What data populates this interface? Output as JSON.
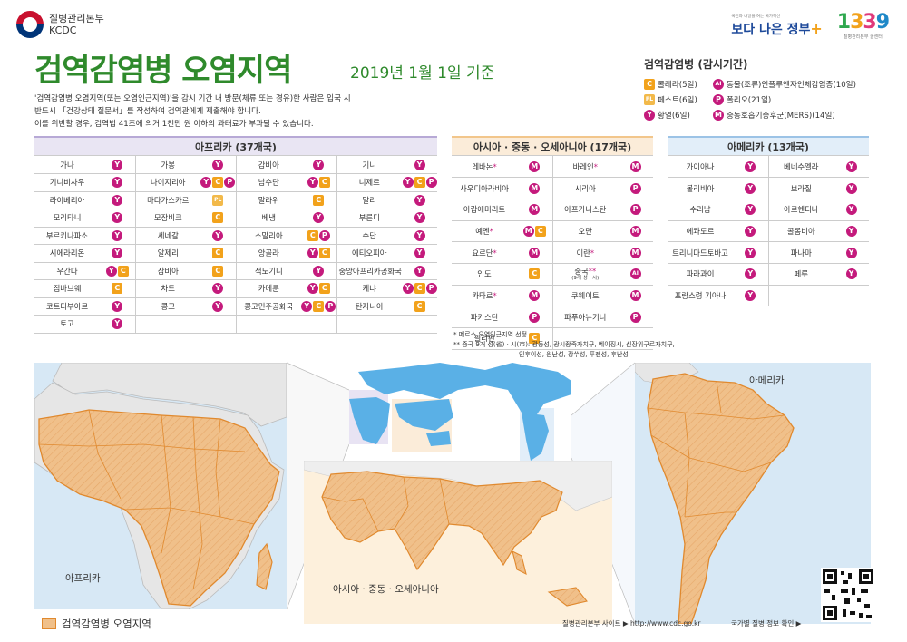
{
  "header": {
    "org_ko": "질병관리본부",
    "org_en": "KCDC",
    "title": "검역감염병 오염지역",
    "date": "2019년 1월 1일 기준",
    "desc": [
      "'검역감염병 오염지역(또는 오염인근지역)'을 감시 기간 내  방문(체류 또는 경유)한 사람은 입국 시",
      "반드시 「건강상태 질문서」를 작성하여 검역관에게 제출해야 합니다.",
      "이를 위반할 경우, 검역법 41조에 의거 1천만 원 이하의 과태료가 부과될 수 있습니다."
    ],
    "gov_logo_sub": "국민과 내일을 여는 국가혁신",
    "gov_logo_text": "보다 나은 정부",
    "hotline": "1339",
    "hotline_sub": "질병관리본부 콜센터"
  },
  "legend": {
    "title": "검역감염병 (감시기간)",
    "items": [
      {
        "code": "C",
        "glyph": "C",
        "label": "콜레라(5일)"
      },
      {
        "code": "AI",
        "glyph": "AI",
        "label": "동물(조류)인플루엔자인체감염증(10일)"
      },
      {
        "code": "PL",
        "glyph": "PL",
        "label": "페스트(6일)"
      },
      {
        "code": "P",
        "glyph": "P",
        "label": "폴리오(21일)"
      },
      {
        "code": "Y",
        "glyph": "Y",
        "label": "황열(6일)"
      },
      {
        "code": "M",
        "glyph": "M",
        "label": "중동호흡기증후군(MERS)(14일)"
      }
    ]
  },
  "africa": {
    "title": "아프리카 (37개국)",
    "rows": [
      [
        {
          "n": "가나",
          "d": [
            "Y"
          ]
        },
        {
          "n": "가봉",
          "d": [
            "Y"
          ]
        },
        {
          "n": "감비아",
          "d": [
            "Y"
          ]
        },
        {
          "n": "기니",
          "d": [
            "Y"
          ]
        }
      ],
      [
        {
          "n": "기니비사우",
          "d": [
            "Y"
          ]
        },
        {
          "n": "나이지리아",
          "d": [
            "Y",
            "C",
            "P"
          ]
        },
        {
          "n": "남수단",
          "d": [
            "Y",
            "C"
          ]
        },
        {
          "n": "니제르",
          "d": [
            "Y",
            "C",
            "P"
          ]
        }
      ],
      [
        {
          "n": "라이베리아",
          "d": [
            "Y"
          ]
        },
        {
          "n": "마다가스카르",
          "d": [
            "PL"
          ]
        },
        {
          "n": "말라위",
          "d": [
            "C"
          ]
        },
        {
          "n": "말리",
          "d": [
            "Y"
          ]
        }
      ],
      [
        {
          "n": "모리타니",
          "d": [
            "Y"
          ]
        },
        {
          "n": "모잠비크",
          "d": [
            "C"
          ]
        },
        {
          "n": "베냉",
          "d": [
            "Y"
          ]
        },
        {
          "n": "부룬디",
          "d": [
            "Y"
          ]
        }
      ],
      [
        {
          "n": "부르키나파소",
          "d": [
            "Y"
          ]
        },
        {
          "n": "세네갈",
          "d": [
            "Y"
          ]
        },
        {
          "n": "소말리아",
          "d": [
            "C",
            "P"
          ]
        },
        {
          "n": "수단",
          "d": [
            "Y"
          ]
        }
      ],
      [
        {
          "n": "시에라리온",
          "d": [
            "Y"
          ]
        },
        {
          "n": "알제리",
          "d": [
            "C"
          ]
        },
        {
          "n": "앙골라",
          "d": [
            "Y",
            "C"
          ]
        },
        {
          "n": "에티오피아",
          "d": [
            "Y"
          ]
        }
      ],
      [
        {
          "n": "우간다",
          "d": [
            "Y",
            "C"
          ]
        },
        {
          "n": "잠비아",
          "d": [
            "C"
          ]
        },
        {
          "n": "적도기니",
          "d": [
            "Y"
          ]
        },
        {
          "n": "중앙아프리카공화국",
          "d": [
            "Y"
          ]
        }
      ],
      [
        {
          "n": "짐바브웨",
          "d": [
            "C"
          ]
        },
        {
          "n": "차드",
          "d": [
            "Y"
          ]
        },
        {
          "n": "카메룬",
          "d": [
            "Y",
            "C"
          ]
        },
        {
          "n": "케냐",
          "d": [
            "Y",
            "C",
            "P"
          ]
        }
      ],
      [
        {
          "n": "코트디부아르",
          "d": [
            "Y"
          ]
        },
        {
          "n": "콩고",
          "d": [
            "Y"
          ]
        },
        {
          "n": "콩고민주공화국",
          "d": [
            "Y",
            "C",
            "P"
          ]
        },
        {
          "n": "탄자니아",
          "d": [
            "C"
          ]
        }
      ],
      [
        {
          "n": "토고",
          "d": [
            "Y"
          ]
        },
        {
          "n": "",
          "d": []
        },
        {
          "n": "",
          "d": []
        },
        {
          "n": "",
          "d": []
        }
      ]
    ]
  },
  "asia": {
    "title": "아시아 · 중동 · 오세아니아 (17개국)",
    "rows": [
      [
        {
          "n": "레바논",
          "mark": "*",
          "d": [
            "M"
          ]
        },
        {
          "n": "바레인",
          "mark": "*",
          "d": [
            "M"
          ]
        }
      ],
      [
        {
          "n": "사우디아라비아",
          "d": [
            "M"
          ]
        },
        {
          "n": "시리아",
          "d": [
            "P"
          ]
        }
      ],
      [
        {
          "n": "아랍에미리트",
          "d": [
            "M"
          ]
        },
        {
          "n": "아프가니스탄",
          "d": [
            "P"
          ]
        }
      ],
      [
        {
          "n": "예멘",
          "mark": "*",
          "d": [
            "M",
            "C"
          ]
        },
        {
          "n": "오만",
          "d": [
            "M"
          ]
        }
      ],
      [
        {
          "n": "요르단",
          "mark": "*",
          "d": [
            "M"
          ]
        },
        {
          "n": "이란",
          "mark": "*",
          "d": [
            "M"
          ]
        }
      ],
      [
        {
          "n": "인도",
          "d": [
            "C"
          ]
        },
        {
          "n": "중국",
          "mark": "**",
          "sub": "(9개 성 · 시)",
          "d": [
            "AI"
          ]
        }
      ],
      [
        {
          "n": "카타르",
          "mark": "*",
          "d": [
            "M"
          ]
        },
        {
          "n": "쿠웨이트",
          "d": [
            "M"
          ]
        }
      ],
      [
        {
          "n": "파키스탄",
          "d": [
            "P"
          ]
        },
        {
          "n": "파푸아뉴기니",
          "d": [
            "P"
          ]
        }
      ],
      [
        {
          "n": "필리핀",
          "d": [
            "C"
          ]
        },
        {
          "n": "",
          "d": []
        }
      ]
    ]
  },
  "america": {
    "title": "아메리카 (13개국)",
    "rows": [
      [
        {
          "n": "가이아나",
          "d": [
            "Y"
          ]
        },
        {
          "n": "베네수엘라",
          "d": [
            "Y"
          ]
        }
      ],
      [
        {
          "n": "볼리비아",
          "d": [
            "Y"
          ]
        },
        {
          "n": "브라질",
          "d": [
            "Y"
          ]
        }
      ],
      [
        {
          "n": "수리남",
          "d": [
            "Y"
          ]
        },
        {
          "n": "아르헨티나",
          "d": [
            "Y"
          ]
        }
      ],
      [
        {
          "n": "에콰도르",
          "d": [
            "Y"
          ]
        },
        {
          "n": "콜롬비아",
          "d": [
            "Y"
          ]
        }
      ],
      [
        {
          "n": "트리니다드토바고",
          "d": [
            "Y"
          ]
        },
        {
          "n": "파나마",
          "d": [
            "Y"
          ]
        }
      ],
      [
        {
          "n": "파라과이",
          "d": [
            "Y"
          ]
        },
        {
          "n": "페루",
          "d": [
            "Y"
          ]
        }
      ],
      [
        {
          "n": "프랑스령 기아나",
          "d": [
            "Y"
          ]
        },
        {
          "n": "",
          "d": []
        }
      ]
    ]
  },
  "footnotes": {
    "note1": "* 메르스 오염인근지역 선정",
    "note2": "** 중국 9개 성(省) · 시(市):  광동성, 광시좡족자치구, 베이징시, 신장위구르자치구,",
    "note3": "인후이성, 윈난성, 장쑤성, 푸젠성, 후난성"
  },
  "maps": {
    "africa_label": "아프리카",
    "asia_label": "아시아 · 중동 · 오세아니아",
    "america_label": "아메리카"
  },
  "bottom": {
    "legend_label": "검역감염병 오염지역",
    "site_label": "질병관리본부 사이트  ▶  http://www.cdc.go.kr",
    "info_label": "국가별 질병 정보 확인  ▶"
  },
  "colors": {
    "title_green": "#2f8a2c",
    "badge_magenta": "#c41a7c",
    "badge_orange": "#f2a21b",
    "region_fill": "#f0c08a",
    "region_border": "#e0892e"
  }
}
